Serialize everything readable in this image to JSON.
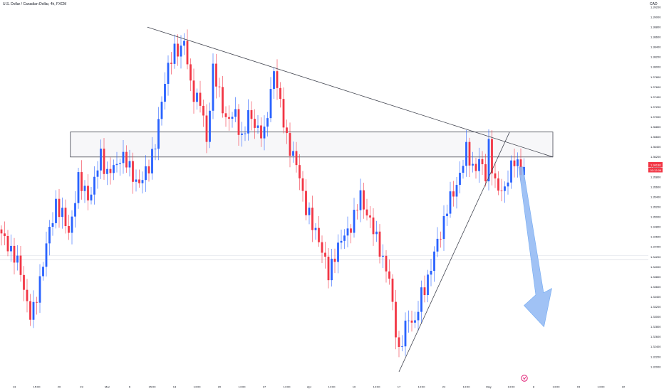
{
  "header": {
    "title": "U.S. Dollar / Canadian Dollar, 4h, FXCM",
    "currency": "CAD"
  },
  "colors": {
    "up": "#2962ff",
    "down": "#f23645",
    "line": "#434651",
    "zone_fill": "#f7f7f9",
    "arrow": "#90b8f4",
    "arrow_stroke": "#5b9cf0"
  },
  "logo": {
    "icon": "tradingview-logo-icon"
  },
  "price_tags": {
    "price": "1.34138",
    "countdown": "03:12:09"
  },
  "chart_data": {
    "type": "candlestick",
    "symbol": "U.S. Dollar / Canadian Dollar",
    "timeframe": "4h",
    "source": "FXCM",
    "ylim": [
      1.318,
      1.392
    ],
    "last_price": 1.34138,
    "y_ticks": [
      "1.39200",
      "1.39000",
      "1.38800",
      "1.38600",
      "1.38400",
      "1.38200",
      "1.38000",
      "1.37800",
      "1.37600",
      "1.37400",
      "1.37200",
      "1.37000",
      "1.36800",
      "1.36600",
      "1.36400",
      "1.36200",
      "1.36000",
      "1.35800",
      "1.35600",
      "1.35400",
      "1.35200",
      "1.35000",
      "1.34800",
      "1.34600",
      "1.34400",
      "1.34200",
      "1.34000",
      "1.33800",
      "1.33600",
      "1.33400",
      "1.33200",
      "1.33000",
      "1.32800",
      "1.32600",
      "1.32400",
      "1.32200",
      "1.32000"
    ],
    "x_labels": [
      "13",
      "15:00",
      "20",
      "23",
      "Mar",
      "6",
      "15:00",
      "13",
      "14:00",
      "20",
      "14:00",
      "27",
      "14:00",
      "Apr",
      "14:00",
      "10",
      "14:00",
      "17",
      "14:00",
      "24",
      "14:00",
      "May",
      "14:00",
      "8",
      "14:00",
      "15",
      "14:00",
      "22"
    ],
    "x_label_slots": [
      4,
      11,
      18,
      25,
      33,
      40,
      47,
      54,
      61,
      68,
      75,
      82,
      89,
      96,
      103,
      110,
      117,
      124,
      131,
      138,
      145,
      152,
      159,
      166,
      173,
      180,
      187,
      194
    ],
    "total_slots": 203,
    "anchors": [
      [
        0,
        1.346
      ],
      [
        2,
        1.3448
      ],
      [
        6,
        1.339
      ],
      [
        9,
        1.33
      ],
      [
        10,
        1.331
      ],
      [
        13,
        1.341
      ],
      [
        17,
        1.353
      ],
      [
        21,
        1.347
      ],
      [
        24,
        1.357
      ],
      [
        28,
        1.354
      ],
      [
        31,
        1.363
      ],
      [
        33,
        1.358
      ],
      [
        37,
        1.362
      ],
      [
        40,
        1.36
      ],
      [
        43,
        1.356
      ],
      [
        48,
        1.364
      ],
      [
        51,
        1.378
      ],
      [
        54,
        1.383
      ],
      [
        57,
        1.385
      ],
      [
        59,
        1.376
      ],
      [
        62,
        1.373
      ],
      [
        64,
        1.365
      ],
      [
        66,
        1.38
      ],
      [
        68,
        1.374
      ],
      [
        70,
        1.37
      ],
      [
        73,
        1.37
      ],
      [
        75,
        1.366
      ],
      [
        77,
        1.37
      ],
      [
        80,
        1.368
      ],
      [
        82,
        1.366
      ],
      [
        85,
        1.38
      ],
      [
        87,
        1.372
      ],
      [
        89,
        1.366
      ],
      [
        91,
        1.362
      ],
      [
        93,
        1.358
      ],
      [
        95,
        1.352
      ],
      [
        97,
        1.348
      ],
      [
        99,
        1.346
      ],
      [
        102,
        1.338
      ],
      [
        104,
        1.343
      ],
      [
        107,
        1.346
      ],
      [
        110,
        1.35
      ],
      [
        112,
        1.354
      ],
      [
        114,
        1.351
      ],
      [
        116,
        1.347
      ],
      [
        118,
        1.344
      ],
      [
        121,
        1.337
      ],
      [
        124,
        1.323
      ],
      [
        125,
        1.325
      ],
      [
        127,
        1.33
      ],
      [
        129,
        1.329
      ],
      [
        131,
        1.334
      ],
      [
        134,
        1.34
      ],
      [
        137,
        1.347
      ],
      [
        139,
        1.352
      ],
      [
        141,
        1.3545
      ],
      [
        143,
        1.359
      ],
      [
        145,
        1.363
      ],
      [
        147,
        1.36
      ],
      [
        149,
        1.361
      ],
      [
        151,
        1.358
      ],
      [
        152,
        1.365
      ],
      [
        154,
        1.356
      ],
      [
        156,
        1.355
      ],
      [
        158,
        1.358
      ],
      [
        160,
        1.361
      ],
      [
        162,
        1.36
      ],
      [
        163,
        1.36
      ]
    ],
    "zone": {
      "x_start": 21.5,
      "x_end": 172,
      "y_top": 1.367,
      "y_bottom": 1.362
    },
    "trendlines": [
      {
        "name": "descending-resistance",
        "from": [
          45.5,
          1.388
        ],
        "to": [
          172,
          1.362
        ]
      },
      {
        "name": "ascending-support",
        "from": [
          124,
          1.319
        ],
        "to": [
          158.5,
          1.367
        ]
      }
    ],
    "projection": {
      "type": "arrow",
      "direction": "down",
      "from": [
        162,
        1.36
      ],
      "to": [
        169,
        1.328
      ]
    },
    "grid": false,
    "legend": "none"
  }
}
